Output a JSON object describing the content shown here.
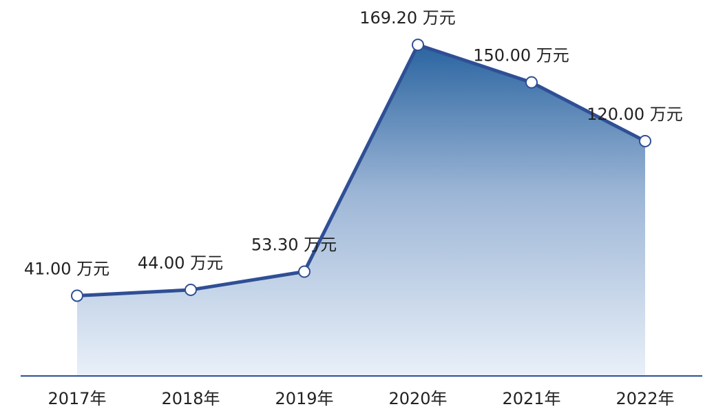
{
  "chart_data": {
    "type": "area",
    "categories": [
      "2017年",
      "2018年",
      "2019年",
      "2020年",
      "2021年",
      "2022年"
    ],
    "values": [
      41,
      44,
      53.3,
      169.2,
      150,
      120
    ],
    "value_labels": [
      "41.00 万元",
      "44.00 万元",
      "53.30 万元",
      "169.20 万元",
      "150.00 万元",
      "120.00 万元"
    ],
    "color": "#2f4f95",
    "ylim": [
      0,
      190
    ]
  }
}
